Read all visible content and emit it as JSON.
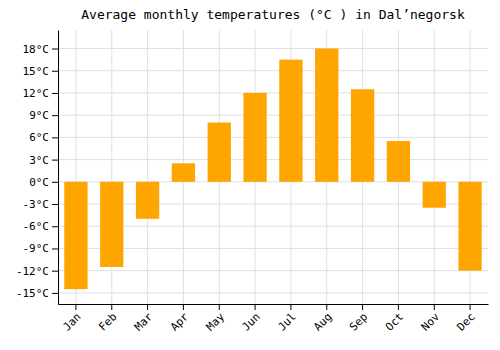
{
  "chart_data": {
    "type": "bar",
    "title": "Average monthly temperatures (°C ) in Dal’negorsk",
    "categories": [
      "Jan",
      "Feb",
      "Mar",
      "Apr",
      "May",
      "Jun",
      "Jul",
      "Aug",
      "Sep",
      "Oct",
      "Nov",
      "Dec"
    ],
    "values": [
      -14.5,
      -11.5,
      -5.0,
      2.5,
      8.0,
      12.0,
      16.5,
      18.0,
      12.5,
      5.5,
      -3.5,
      -12.0
    ],
    "color": "#FFA500",
    "ylim": [
      -16.5,
      20.5
    ],
    "yticks": [
      {
        "value": -15,
        "label": "-15°C"
      },
      {
        "value": -12,
        "label": "-12°C"
      },
      {
        "value": -9,
        "label": "-9°C"
      },
      {
        "value": -6,
        "label": "-6°C"
      },
      {
        "value": -3,
        "label": "-3°C"
      },
      {
        "value": 0,
        "label": "0°C"
      },
      {
        "value": 3,
        "label": "3°C"
      },
      {
        "value": 6,
        "label": "6°C"
      },
      {
        "value": 9,
        "label": "9°C"
      },
      {
        "value": 12,
        "label": "12°C"
      },
      {
        "value": 15,
        "label": "15°C"
      },
      {
        "value": 18,
        "label": "18°C"
      }
    ],
    "grid": true
  }
}
